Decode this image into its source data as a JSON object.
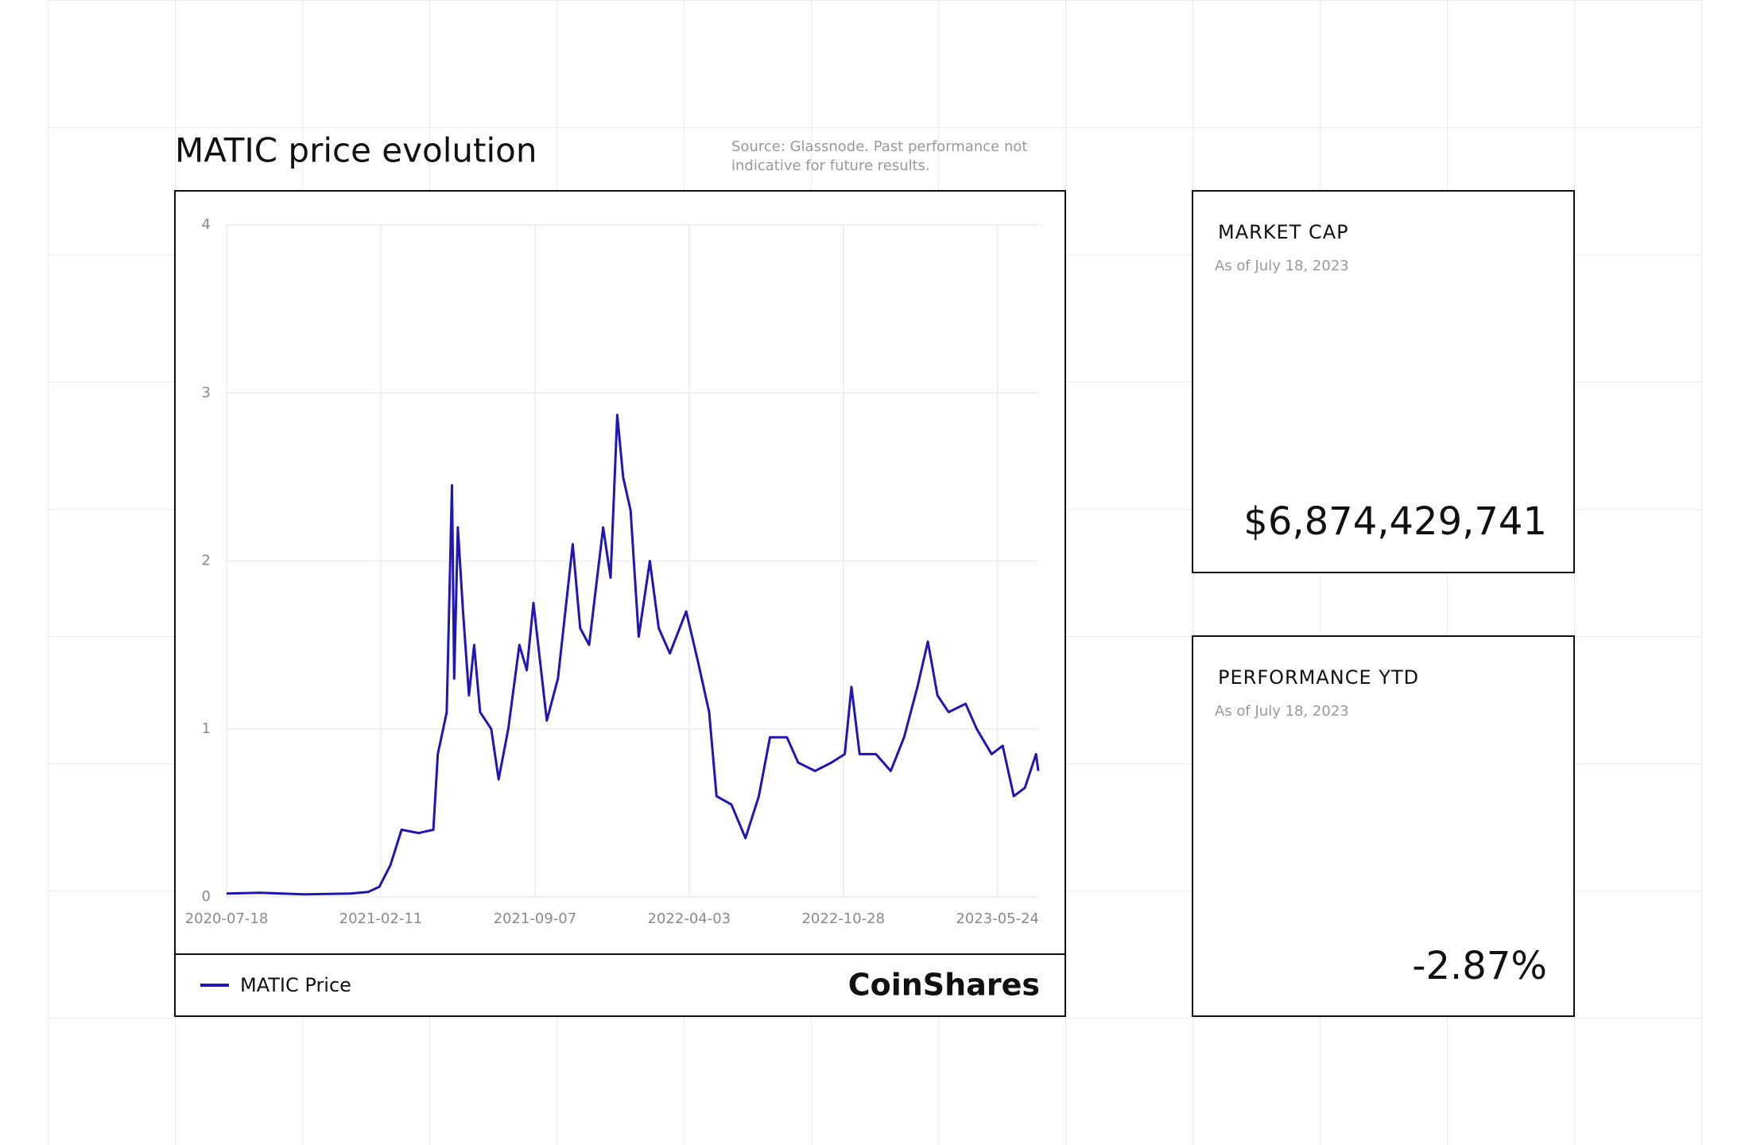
{
  "chart_data": {
    "type": "line",
    "title": "MATIC price evolution",
    "x": [
      "2020-07-18",
      "2020-09-01",
      "2020-11-01",
      "2021-01-01",
      "2021-01-25",
      "2021-02-09",
      "2021-02-24",
      "2021-03-11",
      "2021-04-03",
      "2021-04-23",
      "2021-04-29",
      "2021-05-11",
      "2021-05-18",
      "2021-05-21",
      "2021-05-26",
      "2021-06-02",
      "2021-06-10",
      "2021-06-17",
      "2021-06-25",
      "2021-07-10",
      "2021-07-20",
      "2021-08-02",
      "2021-08-17",
      "2021-08-27",
      "2021-09-05",
      "2021-09-23",
      "2021-10-08",
      "2021-10-28",
      "2021-11-07",
      "2021-11-19",
      "2021-12-08",
      "2021-12-18",
      "2021-12-27",
      "2022-01-04",
      "2022-01-14",
      "2022-01-25",
      "2022-02-09",
      "2022-02-21",
      "2022-03-08",
      "2022-03-30",
      "2022-04-15",
      "2022-04-30",
      "2022-05-10",
      "2022-05-30",
      "2022-06-18",
      "2022-07-06",
      "2022-07-21",
      "2022-08-13",
      "2022-08-28",
      "2022-09-20",
      "2022-10-12",
      "2022-10-30",
      "2022-11-08",
      "2022-11-19",
      "2022-12-11",
      "2022-12-31",
      "2023-01-18",
      "2023-02-05",
      "2023-02-19",
      "2023-03-04",
      "2023-03-19",
      "2023-04-11",
      "2023-04-26",
      "2023-05-16",
      "2023-05-31",
      "2023-06-15",
      "2023-06-30",
      "2023-07-15",
      "2023-07-18"
    ],
    "series": [
      {
        "name": "MATIC Price",
        "color": "#1f16b5",
        "values": [
          0.02,
          0.025,
          0.015,
          0.02,
          0.03,
          0.06,
          0.19,
          0.4,
          0.38,
          0.4,
          0.85,
          1.1,
          2.45,
          1.3,
          2.2,
          1.7,
          1.2,
          1.5,
          1.1,
          1.0,
          0.7,
          1.0,
          1.5,
          1.35,
          1.75,
          1.05,
          1.3,
          2.1,
          1.6,
          1.5,
          2.2,
          1.9,
          2.87,
          2.5,
          2.3,
          1.55,
          2.0,
          1.6,
          1.45,
          1.7,
          1.4,
          1.1,
          0.6,
          0.55,
          0.35,
          0.6,
          0.95,
          0.95,
          0.8,
          0.75,
          0.8,
          0.85,
          1.25,
          0.85,
          0.85,
          0.75,
          0.95,
          1.25,
          1.52,
          1.2,
          1.1,
          1.15,
          1.0,
          0.85,
          0.9,
          0.6,
          0.65,
          0.85,
          0.75
        ]
      }
    ],
    "xlim": [
      "2020-07-18",
      "2023-07-18"
    ],
    "xticks": [
      "2020-07-18",
      "2021-02-11",
      "2021-09-07",
      "2022-04-03",
      "2022-10-28",
      "2023-05-24"
    ],
    "ylim": [
      0,
      4
    ],
    "yticks": [
      0,
      1,
      2,
      3,
      4
    ],
    "grid": true
  },
  "source": "Source: Glassnode. Past performance not",
  "source_line2": "indicative for future results.",
  "brand": "CoinShares",
  "cards": [
    {
      "label": "MARKET CAP",
      "date": "As of July 18, 2023",
      "value": "$6,874,429,741"
    },
    {
      "label": "PERFORMANCE YTD",
      "date": "As of July 18, 2023",
      "value": "-2.87%"
    }
  ]
}
